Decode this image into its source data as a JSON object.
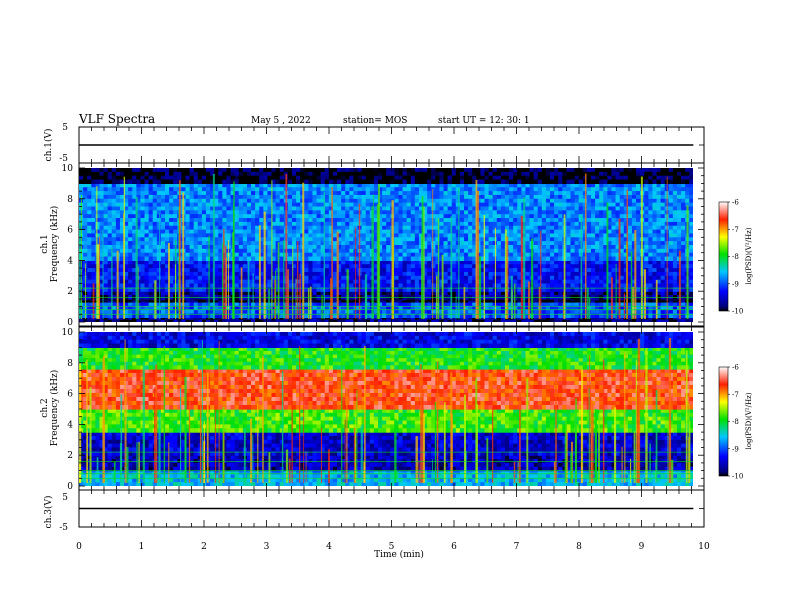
{
  "header": {
    "title": "VLF Spectra",
    "date": "May 5 , 2022",
    "station": "station= MOS",
    "start_ut": "start  UT  =   12: 30: 1"
  },
  "chart_data": [
    {
      "type": "line",
      "panel": "ch1-voltage",
      "ylabel": "ch.1(V)",
      "yticks": [
        "5",
        "-5"
      ],
      "ylim": [
        -5,
        5
      ],
      "x": [
        0,
        9.83
      ],
      "y": [
        0,
        0
      ],
      "xlim": [
        0,
        10
      ]
    },
    {
      "type": "heatmap",
      "panel": "ch1-spectrogram",
      "ylabel_line1": "ch.1",
      "ylabel_line2": "Frequency (kHz)",
      "yticks": [
        "0",
        "2",
        "4",
        "6",
        "8",
        "10"
      ],
      "ylim": [
        0,
        10
      ],
      "xlim": [
        0,
        9.83
      ],
      "colorbar": {
        "ticks": [
          "-6",
          "-7",
          "-8",
          "-9",
          "-10"
        ],
        "range": [
          -10,
          -6
        ],
        "label": "log(PSD)(V²/Hz)"
      },
      "bands": [
        {
          "from": 0,
          "to": 0.3,
          "level": -9.8
        },
        {
          "from": 0.3,
          "to": 1.3,
          "level": -9.0
        },
        {
          "from": 1.3,
          "to": 1.5,
          "level": -10
        },
        {
          "from": 1.5,
          "to": 2.0,
          "level": -9.7
        },
        {
          "from": 2.0,
          "to": 4.0,
          "level": -9.3
        },
        {
          "from": 4.0,
          "to": 9.0,
          "level": -8.8
        },
        {
          "from": 9.0,
          "to": 10,
          "level": -10
        }
      ]
    },
    {
      "type": "heatmap",
      "panel": "ch2-spectrogram",
      "ylabel_line1": "ch.2",
      "ylabel_line2": "Frequency (kHz)",
      "yticks": [
        "0",
        "2",
        "4",
        "6",
        "8",
        "10"
      ],
      "ylim": [
        0,
        10
      ],
      "xlim": [
        0,
        9.83
      ],
      "colorbar": {
        "ticks": [
          "-6",
          "-7",
          "-8",
          "-9",
          "-10"
        ],
        "range": [
          -10,
          -6
        ],
        "label": "log(PSD)(V²/Hz)"
      },
      "bands": [
        {
          "from": 0,
          "to": 1.0,
          "level": -8.6
        },
        {
          "from": 1.0,
          "to": 2.0,
          "level": -9.6
        },
        {
          "from": 2.0,
          "to": 3.5,
          "level": -9.5
        },
        {
          "from": 3.5,
          "to": 5.0,
          "level": -7.8
        },
        {
          "from": 5.0,
          "to": 7.6,
          "level": -6.6
        },
        {
          "from": 7.6,
          "to": 9.0,
          "level": -7.9
        },
        {
          "from": 9.0,
          "to": 10,
          "level": -9.4
        }
      ]
    },
    {
      "type": "line",
      "panel": "ch3-voltage",
      "ylabel": "ch.3(V)",
      "yticks": [
        "5",
        "-5"
      ],
      "ylim": [
        -5,
        5
      ],
      "x": [
        0,
        9.83
      ],
      "y": [
        0,
        0
      ],
      "xlim": [
        0,
        10
      ]
    }
  ],
  "xaxis": {
    "label": "Time  (min)",
    "ticks": [
      "0",
      "1",
      "2",
      "3",
      "4",
      "5",
      "6",
      "7",
      "8",
      "9",
      "10"
    ],
    "range": [
      0,
      10
    ]
  }
}
